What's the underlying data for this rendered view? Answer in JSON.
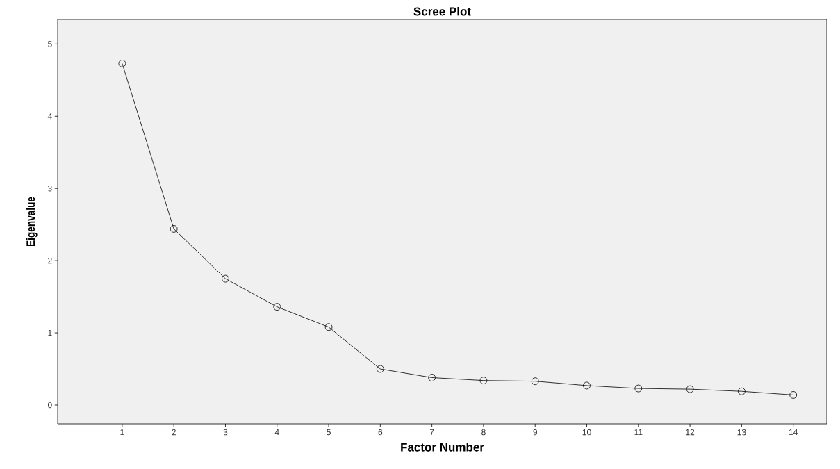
{
  "chart_data": {
    "type": "line",
    "title": "Scree Plot",
    "xlabel": "Factor Number",
    "ylabel": "Eigenvalue",
    "categories": [
      "1",
      "2",
      "3",
      "4",
      "5",
      "6",
      "7",
      "8",
      "9",
      "10",
      "11",
      "12",
      "13",
      "14"
    ],
    "values": [
      4.73,
      2.44,
      1.75,
      1.36,
      1.08,
      0.5,
      0.38,
      0.34,
      0.33,
      0.27,
      0.23,
      0.22,
      0.19,
      0.14
    ],
    "color": "#000000",
    "marker": "circle",
    "line_style": "solid",
    "ylim": [
      -0.26,
      5.34
    ],
    "yticks": [
      0,
      1,
      2,
      3,
      4,
      5
    ],
    "grid": false
  }
}
